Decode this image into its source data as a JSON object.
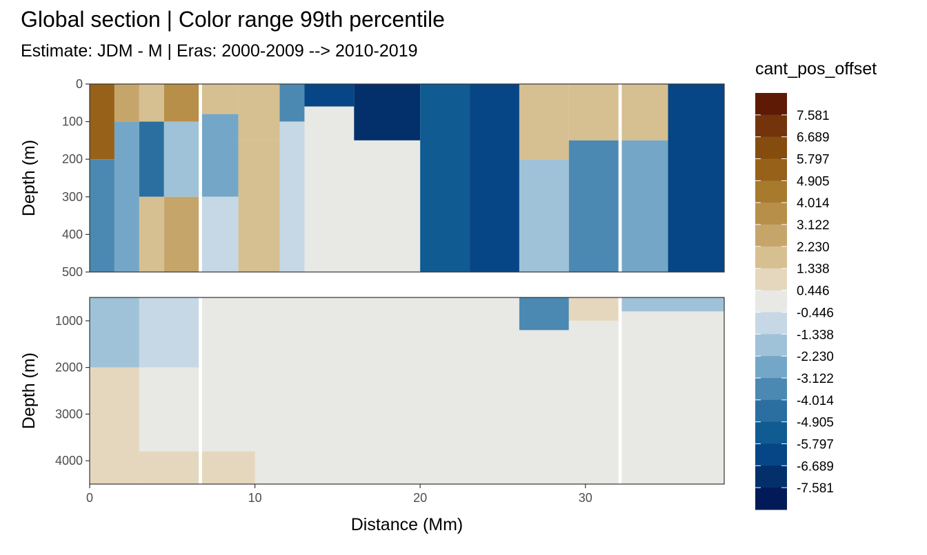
{
  "title": "Global section | Color range 99th percentile",
  "subtitle": "Estimate: JDM - M | Eras: 2000-2009 --> 2010-2019",
  "legend": {
    "title": "cant_pos_offset",
    "breaks": [
      "7.581",
      "6.689",
      "5.797",
      "4.905",
      "4.014",
      "3.122",
      "2.230",
      "1.338",
      "0.446",
      "-0.446",
      "-1.338",
      "-2.230",
      "-3.122",
      "-4.014",
      "-4.905",
      "-5.797",
      "-6.689",
      "-7.581"
    ],
    "colors": [
      "#5e1a05",
      "#74340b",
      "#864c0d",
      "#97611a",
      "#a87a2e",
      "#b88f48",
      "#c6a56b",
      "#d6bf90",
      "#e5d7bd",
      "#e8e8e5",
      "#c6d8e5",
      "#9fc2d8",
      "#74a7c7",
      "#4b89b2",
      "#2a6fa0",
      "#105b91",
      "#064686",
      "#03306b",
      "#021b58"
    ]
  },
  "chart_data": {
    "type": "heatmap",
    "title": "Global section | Color range 99th percentile",
    "subtitle": "Estimate: JDM - M | Eras: 2000-2009 --> 2010-2019",
    "xlabel": "Distance (Mm)",
    "x_ticks": [
      0,
      10,
      20,
      30
    ],
    "xlim": [
      0,
      38.4
    ],
    "fill_variable": "cant_pos_offset",
    "panels": [
      {
        "ylabel": "Depth (m)",
        "ylim": [
          0,
          500
        ],
        "y_reversed": true,
        "y_ticks": [
          0,
          100,
          200,
          300,
          400,
          500
        ],
        "columns": [
          {
            "x_from": 0,
            "x_to": 1.5,
            "bands": [
              {
                "from": 0,
                "to": 200,
                "value": 5.5
              },
              {
                "from": 200,
                "to": 500,
                "value": -3.5
              }
            ]
          },
          {
            "x_from": 1.5,
            "x_to": 3,
            "bands": [
              {
                "from": 0,
                "to": 100,
                "value": 3
              },
              {
                "from": 100,
                "to": 500,
                "value": -2.5
              }
            ]
          },
          {
            "x_from": 3,
            "x_to": 4.5,
            "bands": [
              {
                "from": 0,
                "to": 100,
                "value": 2
              },
              {
                "from": 100,
                "to": 300,
                "value": -4.5
              },
              {
                "from": 300,
                "to": 500,
                "value": 1.5
              }
            ]
          },
          {
            "x_from": 4.5,
            "x_to": 6.6,
            "bands": [
              {
                "from": 0,
                "to": 100,
                "value": 3.5
              },
              {
                "from": 100,
                "to": 300,
                "value": -1.5
              },
              {
                "from": 300,
                "to": 500,
                "value": 2.5
              }
            ]
          },
          {
            "x_from": 6.8,
            "x_to": 9,
            "bands": [
              {
                "from": 0,
                "to": 80,
                "value": 1.5
              },
              {
                "from": 80,
                "to": 300,
                "value": -3
              },
              {
                "from": 300,
                "to": 500,
                "value": -1
              }
            ]
          },
          {
            "x_from": 9,
            "x_to": 11.5,
            "bands": [
              {
                "from": 0,
                "to": 150,
                "value": 2
              },
              {
                "from": 150,
                "to": 500,
                "value": 1.5
              }
            ]
          },
          {
            "x_from": 11.5,
            "x_to": 13,
            "bands": [
              {
                "from": 0,
                "to": 100,
                "value": -3.5
              },
              {
                "from": 100,
                "to": 500,
                "value": -1
              }
            ]
          },
          {
            "x_from": 13,
            "x_to": 16,
            "bands": [
              {
                "from": 0,
                "to": 60,
                "value": -6.5
              },
              {
                "from": 60,
                "to": 500,
                "value": 0
              }
            ]
          },
          {
            "x_from": 16,
            "x_to": 20,
            "bands": [
              {
                "from": 0,
                "to": 150,
                "value": -7
              },
              {
                "from": 150,
                "to": 500,
                "value": 0
              }
            ]
          },
          {
            "x_from": 20,
            "x_to": 23,
            "bands": [
              {
                "from": 0,
                "to": 500,
                "value": -5
              }
            ]
          },
          {
            "x_from": 23,
            "x_to": 26,
            "bands": [
              {
                "from": 0,
                "to": 500,
                "value": -6
              }
            ]
          },
          {
            "x_from": 26,
            "x_to": 29,
            "bands": [
              {
                "from": 0,
                "to": 200,
                "value": 2
              },
              {
                "from": 200,
                "to": 500,
                "value": -2
              }
            ]
          },
          {
            "x_from": 29,
            "x_to": 32,
            "bands": [
              {
                "from": 0,
                "to": 150,
                "value": 1.5
              },
              {
                "from": 150,
                "to": 500,
                "value": -4
              }
            ]
          },
          {
            "x_from": 32.2,
            "x_to": 35,
            "bands": [
              {
                "from": 0,
                "to": 150,
                "value": 2
              },
              {
                "from": 150,
                "to": 500,
                "value": -3
              }
            ]
          },
          {
            "x_from": 35,
            "x_to": 38.4,
            "bands": [
              {
                "from": 0,
                "to": 500,
                "value": -6
              }
            ]
          }
        ]
      },
      {
        "ylabel": "Depth (m)",
        "ylim": [
          500,
          4500
        ],
        "y_reversed": true,
        "y_ticks": [
          1000,
          2000,
          3000,
          4000
        ],
        "columns": [
          {
            "x_from": 0,
            "x_to": 3,
            "bands": [
              {
                "from": 500,
                "to": 2000,
                "value": -2
              },
              {
                "from": 2000,
                "to": 4500,
                "value": 0.8
              }
            ]
          },
          {
            "x_from": 3,
            "x_to": 6.6,
            "bands": [
              {
                "from": 500,
                "to": 2000,
                "value": -1
              },
              {
                "from": 2000,
                "to": 3800,
                "value": 0
              },
              {
                "from": 3800,
                "to": 4500,
                "value": 0.8
              }
            ]
          },
          {
            "x_from": 6.8,
            "x_to": 10,
            "bands": [
              {
                "from": 500,
                "to": 3800,
                "value": 0
              },
              {
                "from": 3800,
                "to": 4500,
                "value": 0.8
              }
            ]
          },
          {
            "x_from": 10,
            "x_to": 26,
            "bands": [
              {
                "from": 500,
                "to": 4500,
                "value": 0
              }
            ]
          },
          {
            "x_from": 26,
            "x_to": 29,
            "bands": [
              {
                "from": 500,
                "to": 1200,
                "value": -4
              },
              {
                "from": 1200,
                "to": 4500,
                "value": 0
              }
            ]
          },
          {
            "x_from": 29,
            "x_to": 32,
            "bands": [
              {
                "from": 500,
                "to": 1000,
                "value": 0.8
              },
              {
                "from": 1000,
                "to": 4500,
                "value": 0
              }
            ]
          },
          {
            "x_from": 32.2,
            "x_to": 38.4,
            "bands": [
              {
                "from": 500,
                "to": 800,
                "value": -2
              },
              {
                "from": 800,
                "to": 4500,
                "value": 0
              }
            ]
          }
        ]
      }
    ]
  }
}
